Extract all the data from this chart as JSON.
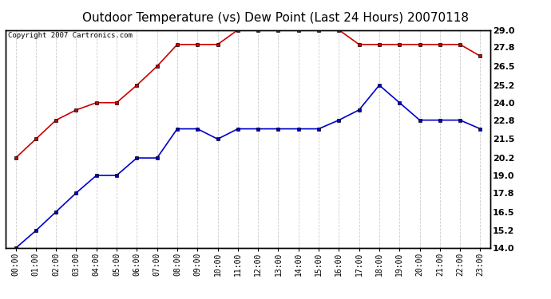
{
  "title": "Outdoor Temperature (vs) Dew Point (Last 24 Hours) 20070118",
  "copyright_text": "Copyright 2007 Cartronics.com",
  "x_labels": [
    "00:00",
    "01:00",
    "02:00",
    "03:00",
    "04:00",
    "05:00",
    "06:00",
    "07:00",
    "08:00",
    "09:00",
    "10:00",
    "11:00",
    "12:00",
    "13:00",
    "14:00",
    "15:00",
    "16:00",
    "17:00",
    "18:00",
    "19:00",
    "20:00",
    "21:00",
    "22:00",
    "23:00"
  ],
  "temp_data": [
    20.2,
    21.5,
    22.8,
    23.5,
    24.0,
    24.0,
    25.2,
    26.5,
    28.0,
    28.0,
    28.0,
    29.0,
    29.0,
    29.0,
    29.0,
    29.0,
    29.0,
    28.0,
    28.0,
    28.0,
    28.0,
    28.0,
    28.0,
    27.2
  ],
  "dew_data": [
    14.0,
    15.2,
    16.5,
    17.8,
    19.0,
    19.0,
    20.2,
    20.2,
    22.2,
    22.2,
    21.5,
    22.2,
    22.2,
    22.2,
    22.2,
    22.2,
    22.8,
    23.5,
    25.2,
    24.0,
    22.8,
    22.8,
    22.8,
    22.2
  ],
  "temp_color": "#cc0000",
  "dew_color": "#0000cc",
  "background_color": "#ffffff",
  "grid_color": "#cccccc",
  "ylim": [
    14.0,
    29.0
  ],
  "yticks": [
    14.0,
    15.2,
    16.5,
    17.8,
    19.0,
    20.2,
    21.5,
    22.8,
    24.0,
    25.2,
    26.5,
    27.8,
    29.0
  ],
  "title_fontsize": 11,
  "copyright_fontsize": 6.5,
  "tick_fontsize": 7,
  "ytick_fontsize": 8
}
